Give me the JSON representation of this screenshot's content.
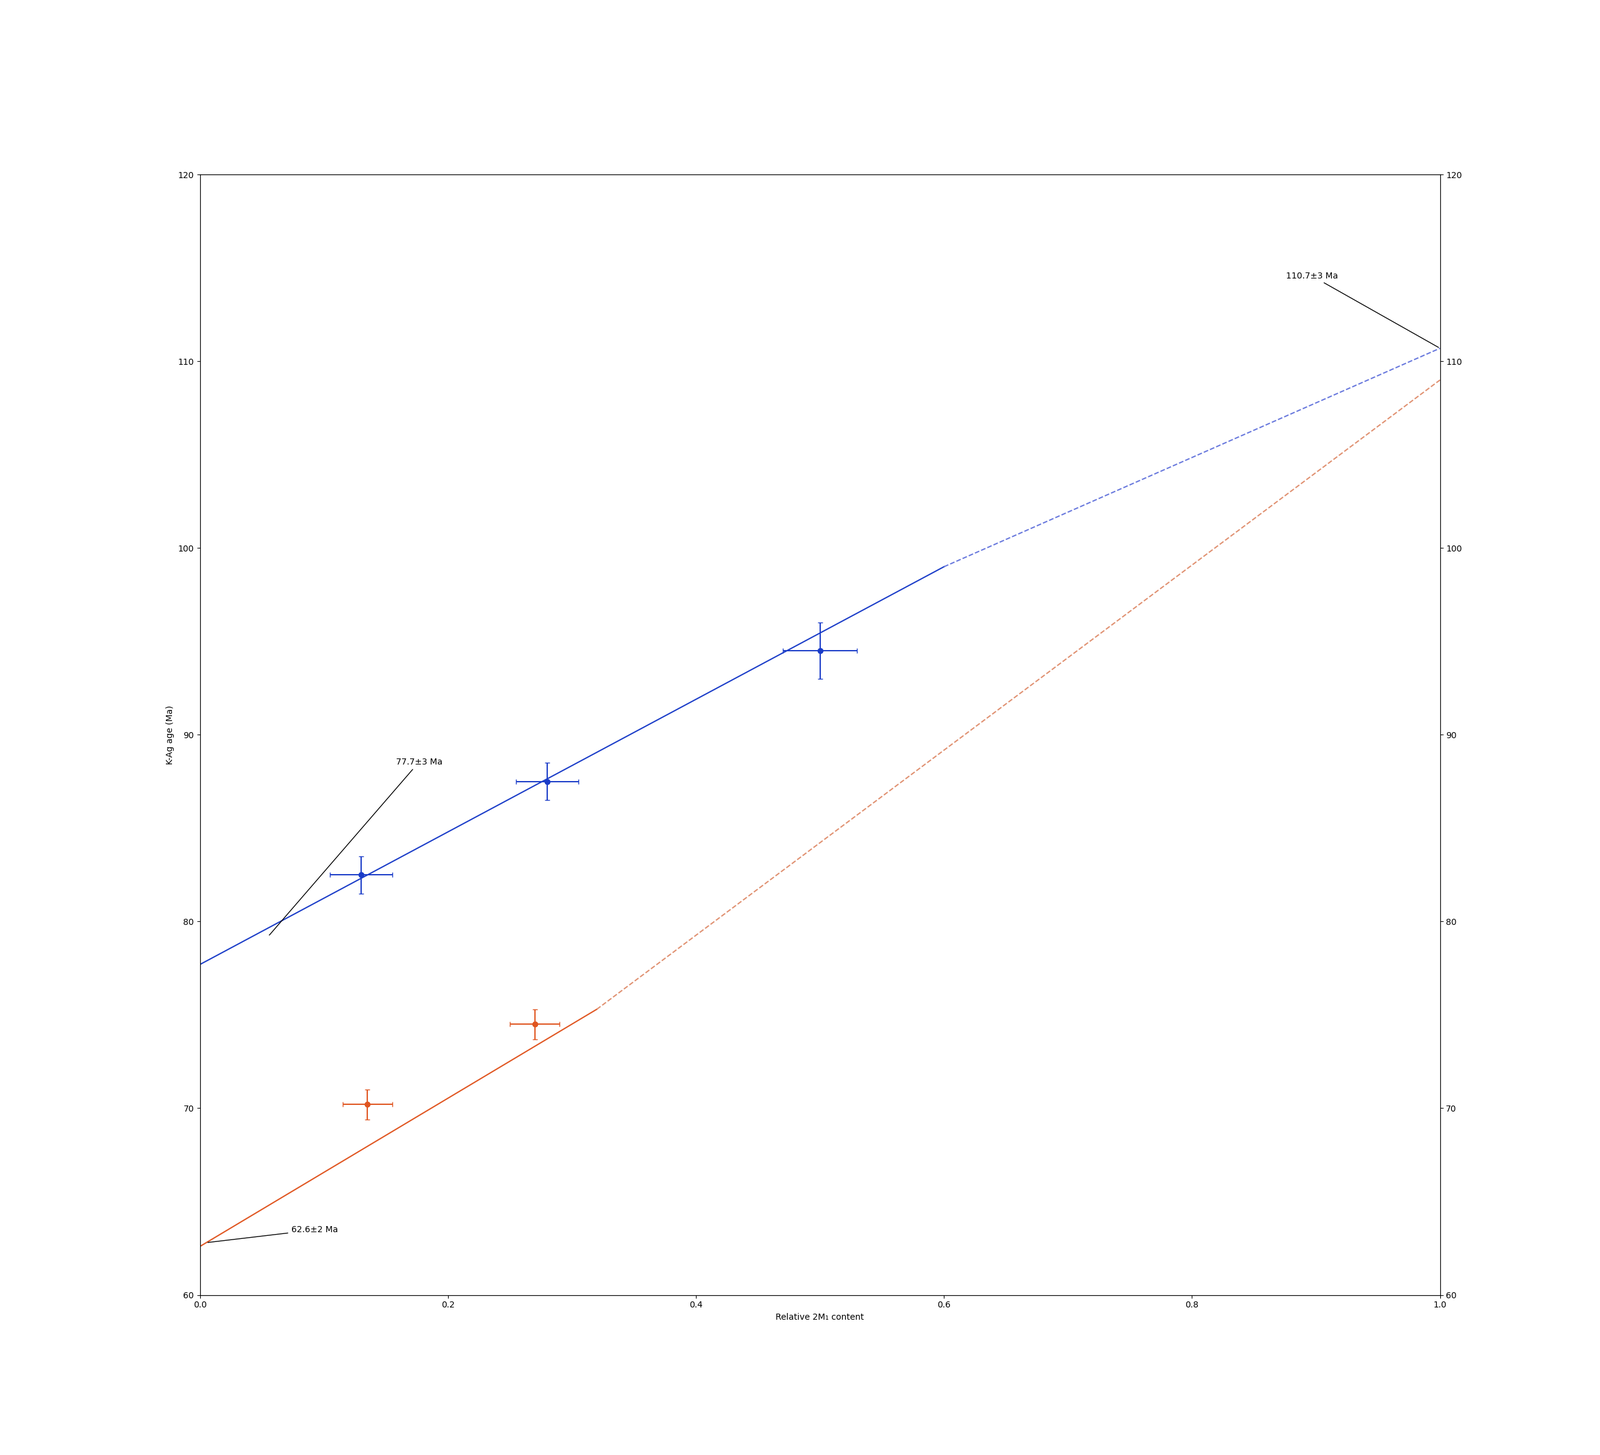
{
  "chart_data": {
    "type": "scatter",
    "xlabel": "Relative 2M₁ content",
    "ylabel": "K-Ag age (Ma)",
    "xlim": [
      0.0,
      1.0
    ],
    "ylim": [
      60,
      120
    ],
    "xticks": [
      0.0,
      0.2,
      0.4,
      0.6,
      0.8,
      1.0
    ],
    "yticks": [
      60,
      70,
      80,
      90,
      100,
      110,
      120
    ],
    "grid": false,
    "series": [
      {
        "type": "line",
        "color": "#e05520",
        "line_style": "solid",
        "x": [
          0.0,
          0.32
        ],
        "values": [
          62.6,
          75.3
        ]
      },
      {
        "type": "line",
        "color": "#e09070",
        "line_style": "dashed",
        "x": [
          0.32,
          1.0
        ],
        "values": [
          75.3,
          109.0
        ]
      },
      {
        "type": "line",
        "color": "#1a3cc8",
        "line_style": "solid",
        "x": [
          0.0,
          0.6
        ],
        "values": [
          77.7,
          99.0
        ]
      },
      {
        "type": "line",
        "color": "#6878dd",
        "line_style": "dashed",
        "x": [
          0.6,
          1.0
        ],
        "values": [
          99.0,
          110.7
        ]
      },
      {
        "type": "scatter",
        "color": "#1a3cc8",
        "marker": "circle",
        "x": [
          0.13,
          0.28,
          0.5
        ],
        "values": [
          82.5,
          87.5,
          94.5
        ],
        "xerr": [
          0.025,
          0.025,
          0.03
        ],
        "yerr": [
          1.0,
          1.0,
          1.5
        ]
      },
      {
        "type": "scatter",
        "color": "#e05520",
        "marker": "circle",
        "x": [
          0.135,
          0.27
        ],
        "values": [
          70.2,
          74.5
        ],
        "xerr": [
          0.02,
          0.02
        ],
        "yerr": [
          0.8,
          0.8
        ]
      }
    ],
    "annotations": [
      {
        "text": "110.7±3 Ma",
        "x": 1.0,
        "y": 110.7
      },
      {
        "text": "77.7±3 Ma",
        "x": 0.055,
        "y": 79.2
      },
      {
        "text": "62.6±2 Ma",
        "x": 0.005,
        "y": 62.8
      }
    ]
  }
}
